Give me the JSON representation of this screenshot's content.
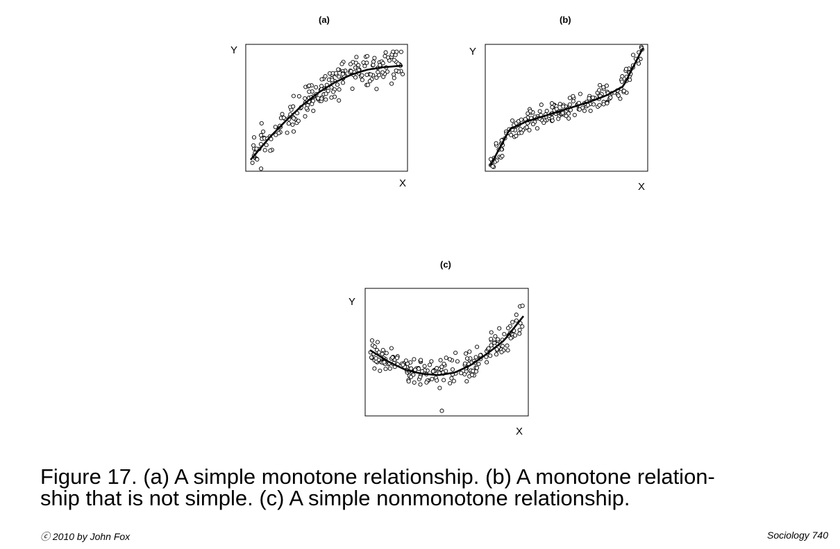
{
  "chart_data": [
    {
      "type": "scatter",
      "title": "(a)",
      "xlabel": "X",
      "ylabel": "Y",
      "xlim": [
        0,
        1
      ],
      "ylim": [
        0,
        1
      ],
      "grid": false,
      "relationship": "increasing concave curve",
      "curve": {
        "x": [
          0.05,
          0.15,
          0.25,
          0.35,
          0.45,
          0.55,
          0.65,
          0.75,
          0.85,
          0.95
        ],
        "y": [
          0.12,
          0.27,
          0.4,
          0.52,
          0.62,
          0.7,
          0.76,
          0.8,
          0.82,
          0.83
        ]
      }
    },
    {
      "type": "scatter",
      "title": "(b)",
      "xlabel": "X",
      "ylabel": "Y",
      "xlim": [
        0,
        1
      ],
      "ylim": [
        0,
        1
      ],
      "grid": false,
      "relationship": "increasing cubic curve",
      "curve": {
        "x": [
          0.05,
          0.15,
          0.25,
          0.35,
          0.45,
          0.55,
          0.65,
          0.75,
          0.85,
          0.95
        ],
        "y": [
          0.09,
          0.33,
          0.39,
          0.43,
          0.47,
          0.51,
          0.55,
          0.6,
          0.67,
          0.92
        ]
      }
    },
    {
      "type": "scatter",
      "title": "(c)",
      "xlabel": "X",
      "ylabel": "Y",
      "xlim": [
        0,
        1
      ],
      "ylim": [
        0,
        1
      ],
      "grid": false,
      "relationship": "U-shaped quadratic curve",
      "curve": {
        "x": [
          0.05,
          0.15,
          0.25,
          0.35,
          0.45,
          0.55,
          0.65,
          0.75,
          0.85,
          0.95
        ],
        "y": [
          0.5,
          0.42,
          0.36,
          0.33,
          0.32,
          0.34,
          0.4,
          0.49,
          0.59,
          0.75
        ]
      }
    }
  ],
  "caption": {
    "line1": "Figure 17.  (a) A simple monotone relationship.  (b) A monotone relation-",
    "line2": "ship that is not simple.  (c) A simple nonmonotone relationship."
  },
  "footer": {
    "copyright": "ⓒ 2010 by John Fox",
    "course": "Sociology 740"
  }
}
